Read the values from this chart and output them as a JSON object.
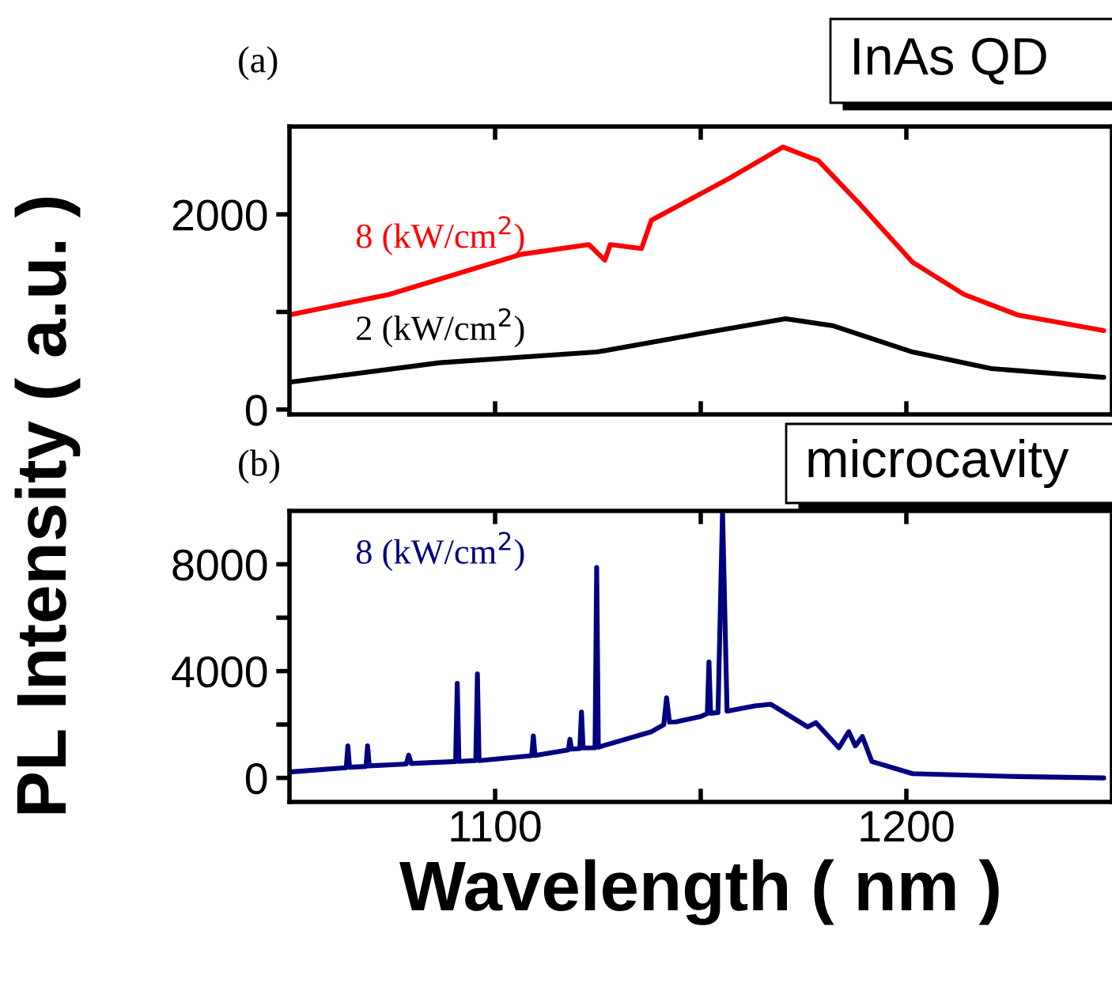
{
  "chart_data": [
    {
      "type": "line",
      "title": "InAs QD",
      "annotations": [
        "(a)"
      ],
      "xlim": [
        1050,
        1250
      ],
      "xticks": [
        1100,
        {
          "value": 1150,
          "label": null
        },
        1200
      ],
      "ylim": [
        -50,
        2900
      ],
      "yticks": [
        0,
        {
          "value": 1000,
          "label": null
        },
        2000
      ],
      "tick_labels": "y",
      "grid": false,
      "legend": false,
      "series": [
        {
          "name": "8 (kW/cm$^{2}$)",
          "color": "#ff0000",
          "x": [
            1050,
            1074.3,
            1106.3,
            1122.8,
            1126.7,
            1128,
            1135.6,
            1138,
            1157,
            1170,
            1178.6,
            1188.8,
            1201.5,
            1214,
            1227,
            1248
          ],
          "values": [
            970,
            1180,
            1590,
            1690,
            1530,
            1690,
            1650,
            1940,
            2370,
            2690,
            2550,
            2100,
            1510,
            1180,
            970,
            810
          ]
        },
        {
          "name": "2 (kW/cm$^{2}$)",
          "color": "#000000",
          "x": [
            1050,
            1086.6,
            1124.8,
            1150.2,
            1170.6,
            1182,
            1201.5,
            1220.6,
            1248
          ],
          "values": [
            280,
            480,
            590,
            780,
            930,
            860,
            590,
            420,
            330
          ]
        }
      ]
    },
    {
      "type": "line",
      "title": "microcavity",
      "annotations": [
        "(b)"
      ],
      "xlabel": "Wavelength ( nm )",
      "ylabel": "PL Intensity ( a.u. )",
      "xlim": [
        1050,
        1250
      ],
      "xticks": [
        1100,
        {
          "value": 1150,
          "label": null
        },
        1200
      ],
      "ylim": [
        -900,
        10000
      ],
      "yticks": [
        0,
        {
          "value": 2000,
          "label": null
        },
        4000,
        {
          "value": 6000,
          "label": null
        },
        8000
      ],
      "grid": false,
      "legend": false,
      "series": [
        {
          "name": "8 (kW/cm$^{2}$)",
          "color": "#000080",
          "x": [
            1050,
            1063.8,
            1064.2,
            1064.6,
            1068.6,
            1069,
            1069.4,
            1078.4,
            1079,
            1079.6,
            1090.4,
            1090.8,
            1091.2,
            1095.3,
            1095.7,
            1096.1,
            1108.9,
            1109.3,
            1109.7,
            1117.8,
            1118.2,
            1118.6,
            1120.6,
            1121,
            1121.4,
            1124.3,
            1124.7,
            1125.1,
            1138,
            1141,
            1141.7,
            1142.4,
            1144,
            1150,
            1151.6,
            1152,
            1152.4,
            1154.2,
            1155.3,
            1156.4,
            1163.2,
            1167,
            1176,
            1178,
            1183.6,
            1186,
            1187.6,
            1189.3,
            1191.6,
            1201.5,
            1227,
            1248
          ],
          "values": [
            220,
            380,
            1200,
            400,
            430,
            1200,
            450,
            520,
            850,
            540,
            615,
            3540,
            620,
            650,
            3900,
            650,
            835,
            1570,
            840,
            1050,
            1450,
            1080,
            1100,
            2470,
            1120,
            1130,
            7880,
            1150,
            1730,
            1990,
            3000,
            2090,
            2100,
            2300,
            2410,
            4340,
            2420,
            2450,
            10000,
            2500,
            2700,
            2760,
            1910,
            2070,
            1130,
            1730,
            1200,
            1550,
            615,
            160,
            50,
            0
          ]
        }
      ]
    }
  ]
}
